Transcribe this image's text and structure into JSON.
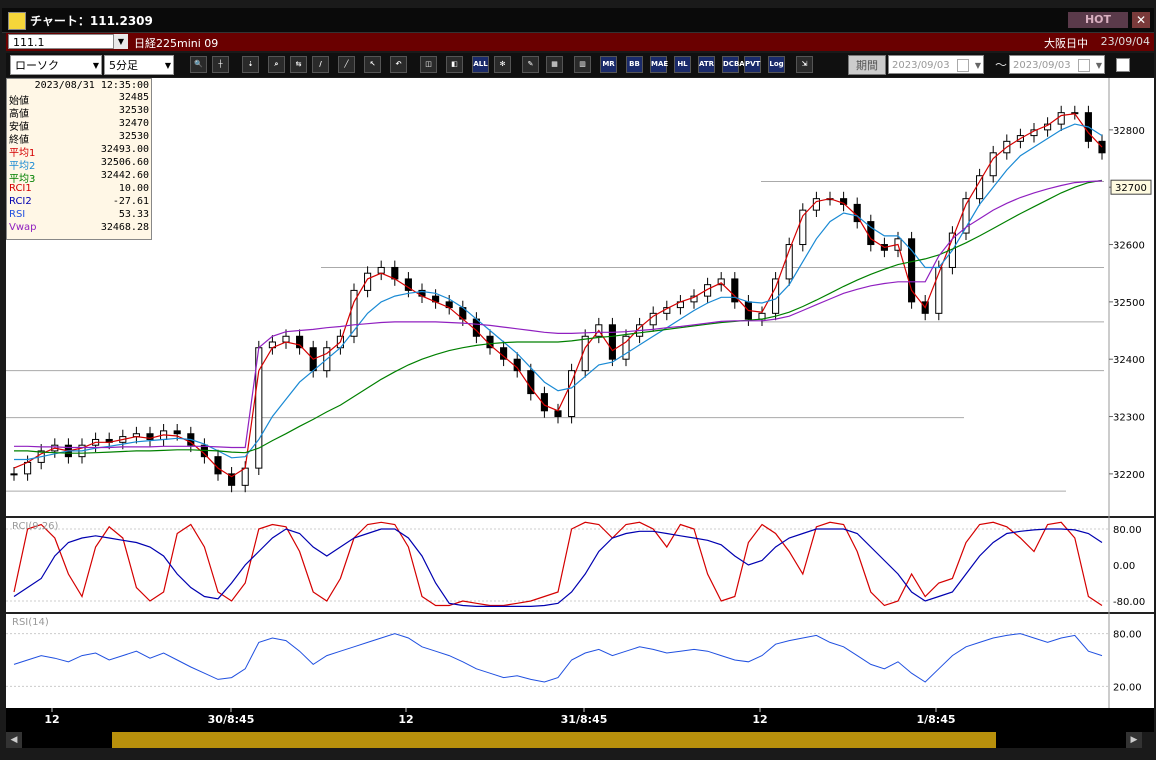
{
  "window": {
    "title": "チャート：111.2309",
    "hot_label": "HOT",
    "close_label": "✕"
  },
  "info_row": {
    "code": "111.1",
    "instrument": "日経225mini 09",
    "session": "大阪日中",
    "date": "23/09/04"
  },
  "toolbar": {
    "chart_type": "ローソク",
    "timeframe": "5分足",
    "period_label": "期間",
    "date_from": "2023/09/03",
    "date_to": "2023/09/03",
    "tilde": "〜",
    "buttons": [
      "zoom-icon",
      "crosshair-icon",
      "drawdown-icon",
      "search-icon",
      "compare-icon",
      "note-icon",
      "line-icon",
      "select-icon",
      "undo-icon",
      "candle-icon",
      "candle2-icon",
      "ALL",
      "settings-icon",
      "tool-icon",
      "palette-icon",
      "volume-icon",
      "MR",
      "BB",
      "MAE",
      "HL",
      "ATR",
      "DCBA",
      "PVT",
      "Log",
      "export-icon"
    ],
    "text_buttons": {
      "all": "ALL",
      "mr": "MR",
      "bb": "BB",
      "mae": "MAE",
      "hl": "HL",
      "atr": "ATR",
      "dc": "DC\nBA",
      "pvt": "PVT",
      "log": "Log"
    }
  },
  "info_panel": {
    "timestamp": "2023/08/31  12:35:00",
    "rows": [
      {
        "label": "始値",
        "value": "32485",
        "color": "#000000"
      },
      {
        "label": "高値",
        "value": "32530",
        "color": "#000000"
      },
      {
        "label": "安値",
        "value": "32470",
        "color": "#000000"
      },
      {
        "label": "終値",
        "value": "32530",
        "color": "#000000"
      },
      {
        "label": "平均1",
        "value": "32493.00",
        "color": "#d40000"
      },
      {
        "label": "平均2",
        "value": "32506.60",
        "color": "#1a8ad4"
      },
      {
        "label": "平均3",
        "value": "32442.60",
        "color": "#008000"
      },
      {
        "label": "RCI1",
        "value": "10.00",
        "color": "#d40000"
      },
      {
        "label": "RCI2",
        "value": "-27.61",
        "color": "#0000b0"
      },
      {
        "label": "RSI",
        "value": "53.33",
        "color": "#2050e0"
      },
      {
        "label": "Vwap",
        "value": "32468.28",
        "color": "#9020c0"
      }
    ]
  },
  "chart_data": [
    {
      "type": "candlestick",
      "price_axis": {
        "ticks": [
          "32200",
          "32300",
          "32400",
          "32500",
          "32600",
          "32700",
          "32800"
        ],
        "ylim": [
          32130,
          32880
        ]
      },
      "current_price_label": "32700",
      "x_ticks": [
        "12",
        "30/8:45",
        "12",
        "31/8:45",
        "12",
        "1/8:45"
      ],
      "closes": [
        32200,
        32220,
        32240,
        32250,
        32230,
        32250,
        32260,
        32255,
        32265,
        32270,
        32260,
        32275,
        32270,
        32250,
        32230,
        32200,
        32180,
        32210,
        32420,
        32430,
        32440,
        32420,
        32380,
        32420,
        32440,
        32520,
        32550,
        32560,
        32540,
        32520,
        32510,
        32500,
        32490,
        32470,
        32440,
        32420,
        32400,
        32380,
        32340,
        32310,
        32300,
        32380,
        32440,
        32460,
        32400,
        32440,
        32460,
        32480,
        32490,
        32500,
        32510,
        32530,
        32540,
        32500,
        32470,
        32480,
        32540,
        32600,
        32660,
        32680,
        32680,
        32670,
        32640,
        32600,
        32590,
        32610,
        32500,
        32480,
        32560,
        32620,
        32680,
        32720,
        32760,
        32780,
        32790,
        32800,
        32810,
        32830,
        32830,
        32780,
        32760
      ],
      "series": [
        {
          "name": "平均1",
          "color": "#d40000",
          "values": [
            32210,
            32220,
            32235,
            32245,
            32240,
            32245,
            32255,
            32255,
            32260,
            32265,
            32262,
            32268,
            32266,
            32255,
            32235,
            32210,
            32195,
            32210,
            32380,
            32420,
            32430,
            32425,
            32400,
            32410,
            32430,
            32500,
            32540,
            32550,
            32540,
            32525,
            32510,
            32500,
            32490,
            32470,
            32450,
            32425,
            32405,
            32385,
            32350,
            32320,
            32310,
            32360,
            32420,
            32450,
            32415,
            32430,
            32455,
            32475,
            32488,
            32500,
            32508,
            32522,
            32533,
            32510,
            32485,
            32482,
            32525,
            32590,
            32650,
            32675,
            32680,
            32672,
            32650,
            32610,
            32595,
            32600,
            32520,
            32490,
            32550,
            32610,
            32670,
            32710,
            32750,
            32770,
            32785,
            32798,
            32808,
            32825,
            32828,
            32795,
            32770
          ]
        },
        {
          "name": "平均2",
          "color": "#1a8ad4",
          "values": [
            32225,
            32225,
            32230,
            32235,
            32240,
            32240,
            32245,
            32248,
            32252,
            32256,
            32258,
            32260,
            32262,
            32260,
            32252,
            32240,
            32228,
            32230,
            32260,
            32300,
            32330,
            32360,
            32380,
            32400,
            32420,
            32450,
            32480,
            32500,
            32510,
            32515,
            32518,
            32515,
            32505,
            32490,
            32470,
            32450,
            32430,
            32410,
            32385,
            32360,
            32345,
            32350,
            32370,
            32390,
            32395,
            32410,
            32425,
            32440,
            32455,
            32470,
            32485,
            32498,
            32508,
            32508,
            32500,
            32498,
            32505,
            32530,
            32570,
            32610,
            32640,
            32655,
            32650,
            32630,
            32615,
            32615,
            32590,
            32560,
            32560,
            32590,
            32630,
            32670,
            32700,
            32730,
            32755,
            32770,
            32785,
            32800,
            32810,
            32805,
            32790
          ]
        },
        {
          "name": "平均3",
          "color": "#008000",
          "values": [
            32240,
            32240,
            32238,
            32237,
            32236,
            32236,
            32237,
            32238,
            32239,
            32240,
            32240,
            32241,
            32242,
            32242,
            32241,
            32240,
            32238,
            32237,
            32245,
            32258,
            32270,
            32283,
            32295,
            32308,
            32320,
            32335,
            32350,
            32365,
            32378,
            32390,
            32400,
            32408,
            32415,
            32420,
            32424,
            32427,
            32429,
            32430,
            32430,
            32430,
            32430,
            32432,
            32435,
            32438,
            32440,
            32443,
            32446,
            32449,
            32452,
            32455,
            32458,
            32461,
            32464,
            32466,
            32468,
            32470,
            32475,
            32482,
            32492,
            32503,
            32515,
            32527,
            32538,
            32548,
            32557,
            32565,
            32570,
            32575,
            32582,
            32592,
            32603,
            32615,
            32628,
            32641,
            32654,
            32666,
            32678,
            32690,
            32700,
            32708,
            32712
          ]
        },
        {
          "name": "Vwap",
          "color": "#9020c0",
          "values": [
            32248,
            32248,
            32247,
            32247,
            32246,
            32246,
            32246,
            32246,
            32247,
            32247,
            32247,
            32248,
            32248,
            32248,
            32248,
            32247,
            32246,
            32246,
            32420,
            32440,
            32448,
            32450,
            32452,
            32455,
            32457,
            32460,
            32462,
            32464,
            32465,
            32465,
            32465,
            32465,
            32464,
            32463,
            32461,
            32459,
            32456,
            32453,
            32450,
            32447,
            32445,
            32445,
            32446,
            32447,
            32447,
            32448,
            32450,
            32452,
            32455,
            32457,
            32460,
            32463,
            32466,
            32467,
            32467,
            32467,
            32470,
            32475,
            32485,
            32495,
            32505,
            32515,
            32522,
            32528,
            32532,
            32535,
            32535,
            32535,
            32580,
            32610,
            32630,
            32645,
            32660,
            32672,
            32682,
            32690,
            32697,
            32703,
            32708,
            32710,
            32711
          ]
        }
      ]
    },
    {
      "type": "line",
      "title": "RCI(9,26)",
      "y_ticks": [
        "80.00",
        "0.00",
        "-80.00"
      ],
      "ylim": [
        -100,
        100
      ],
      "series": [
        {
          "name": "RCI1",
          "color": "#d40000",
          "values": [
            -60,
            80,
            90,
            60,
            -20,
            -70,
            40,
            85,
            60,
            -50,
            -80,
            -60,
            70,
            90,
            40,
            -60,
            -80,
            -40,
            80,
            90,
            85,
            30,
            -60,
            -80,
            -30,
            60,
            90,
            95,
            90,
            40,
            -70,
            -90,
            -90,
            -80,
            -85,
            -90,
            -90,
            -85,
            -80,
            -70,
            -60,
            80,
            95,
            90,
            60,
            90,
            95,
            80,
            40,
            90,
            80,
            -20,
            -80,
            -70,
            50,
            90,
            70,
            30,
            -20,
            85,
            95,
            90,
            30,
            -60,
            -90,
            -80,
            -20,
            -70,
            -40,
            -30,
            50,
            90,
            95,
            85,
            60,
            30,
            90,
            95,
            60,
            -70,
            -90
          ]
        },
        {
          "name": "RCI2",
          "color": "#0000b0",
          "values": [
            -70,
            -50,
            -30,
            20,
            50,
            60,
            65,
            60,
            55,
            50,
            40,
            20,
            -20,
            -50,
            -70,
            -75,
            -40,
            0,
            30,
            60,
            80,
            70,
            40,
            20,
            40,
            60,
            70,
            80,
            80,
            60,
            20,
            -40,
            -85,
            -90,
            -92,
            -92,
            -92,
            -92,
            -92,
            -90,
            -85,
            -60,
            -20,
            30,
            60,
            70,
            75,
            75,
            70,
            65,
            60,
            55,
            45,
            20,
            0,
            10,
            40,
            60,
            70,
            80,
            80,
            80,
            70,
            40,
            10,
            -20,
            -60,
            -80,
            -70,
            -60,
            -20,
            20,
            50,
            70,
            75,
            78,
            80,
            80,
            78,
            70,
            50
          ]
        }
      ]
    },
    {
      "type": "line",
      "title": "RSI(14)",
      "y_ticks": [
        "80.00",
        "20.00"
      ],
      "ylim": [
        0,
        100
      ],
      "series": [
        {
          "name": "RSI",
          "color": "#2050e0",
          "values": [
            45,
            50,
            55,
            52,
            48,
            55,
            58,
            50,
            55,
            60,
            52,
            58,
            50,
            42,
            35,
            28,
            30,
            40,
            70,
            75,
            72,
            60,
            45,
            55,
            60,
            65,
            70,
            75,
            80,
            75,
            65,
            60,
            55,
            48,
            40,
            35,
            30,
            32,
            28,
            25,
            30,
            50,
            58,
            62,
            55,
            60,
            65,
            62,
            58,
            60,
            62,
            60,
            55,
            50,
            48,
            55,
            68,
            72,
            75,
            78,
            70,
            65,
            55,
            45,
            40,
            48,
            35,
            25,
            40,
            55,
            65,
            70,
            75,
            78,
            80,
            75,
            70,
            75,
            78,
            60,
            55
          ]
        }
      ]
    }
  ]
}
